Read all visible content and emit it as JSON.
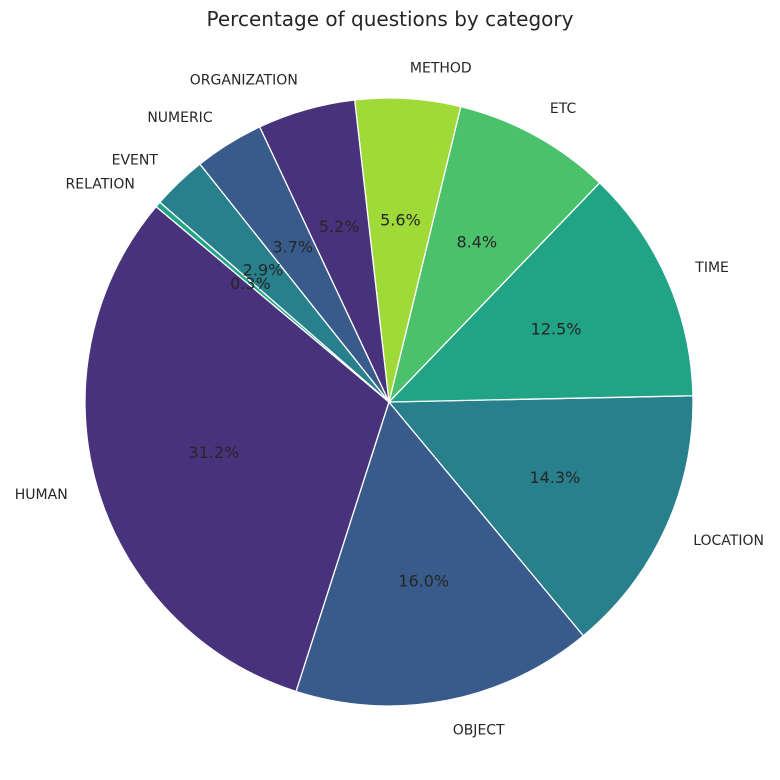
{
  "chart_data": {
    "type": "pie",
    "title": "Percentage of questions by category",
    "start_angle_deg": 140,
    "direction": "counterclockwise",
    "categories": [
      "HUMAN",
      "OBJECT",
      "LOCATION",
      "TIME",
      "ETC",
      "METHOD",
      "ORGANIZATION",
      "NUMERIC",
      "EVENT",
      "RELATION"
    ],
    "values": [
      31.2,
      16.0,
      14.3,
      12.5,
      8.4,
      5.6,
      5.2,
      3.7,
      2.9,
      0.3
    ],
    "percent_labels": [
      "31.2%",
      "16.0%",
      "14.3%",
      "12.5%",
      "8.4%",
      "5.6%",
      "5.2%",
      "3.7%",
      "2.9%",
      "0.3%"
    ],
    "colors": [
      "#48327c",
      "#385b8c",
      "#28808c",
      "#21a386",
      "#4cc16c",
      "#a0da39",
      "#48327c",
      "#385b8c",
      "#28808c",
      "#21a386"
    ],
    "edge_color": "#ffffff"
  }
}
